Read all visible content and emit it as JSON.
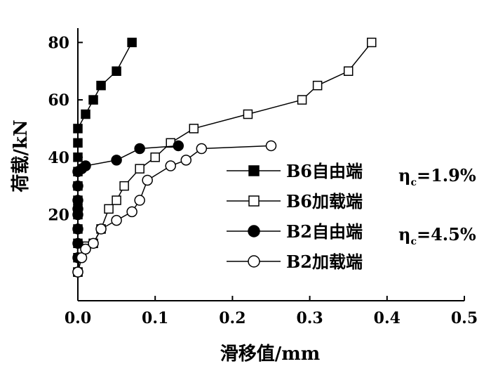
{
  "chart_data": {
    "type": "line",
    "xlabel": "滑移值/mm",
    "ylabel": "荷载/kN",
    "xlim": [
      0,
      0.5
    ],
    "ylim": [
      -10,
      85
    ],
    "xticks": [
      "0.0",
      "0.1",
      "0.2",
      "0.3",
      "0.4",
      "0.5"
    ],
    "yticks": [
      "20",
      "40",
      "60",
      "80"
    ],
    "grid": false,
    "legend_position": "bottom-right",
    "series": [
      {
        "name": "B6自由端",
        "marker": "square-filled",
        "x": [
          0,
          0,
          0,
          0,
          0,
          0,
          0,
          0,
          0,
          0,
          0,
          0,
          0.01,
          0.02,
          0.03,
          0.05,
          0.07
        ],
        "y": [
          0,
          5,
          10,
          15,
          20,
          22,
          25,
          30,
          35,
          40,
          45,
          50,
          55,
          60,
          65,
          70,
          80
        ]
      },
      {
        "name": "B6加载端",
        "marker": "square-open",
        "x": [
          0,
          0.002,
          0.005,
          0.01,
          0.02,
          0.03,
          0.04,
          0.05,
          0.06,
          0.08,
          0.1,
          0.12,
          0.15,
          0.22,
          0.29,
          0.31,
          0.35,
          0.38
        ],
        "y": [
          0,
          5,
          8,
          9,
          10,
          15,
          22,
          25,
          30,
          36,
          40,
          45,
          50,
          55,
          60,
          65,
          70,
          80
        ]
      },
      {
        "name": "B2自由端",
        "marker": "circle-filled",
        "x": [
          0,
          0,
          0,
          0,
          0,
          0,
          0,
          0,
          0,
          0.005,
          0.01,
          0.05,
          0.08,
          0.13
        ],
        "y": [
          0,
          5,
          10,
          15,
          20,
          22,
          25,
          30,
          35,
          36,
          37,
          39,
          43,
          44
        ]
      },
      {
        "name": "B2加载端",
        "marker": "circle-open",
        "x": [
          0,
          0.005,
          0.01,
          0.02,
          0.03,
          0.05,
          0.07,
          0.08,
          0.09,
          0.12,
          0.14,
          0.16,
          0.25
        ],
        "y": [
          0,
          5,
          8,
          10,
          15,
          18,
          21,
          25,
          32,
          37,
          39,
          43,
          44
        ]
      }
    ],
    "annotations": [
      {
        "symbol": "η",
        "sub": "c",
        "text": "=1.9%"
      },
      {
        "symbol": "η",
        "sub": "c",
        "text": "=4.5%"
      }
    ]
  }
}
